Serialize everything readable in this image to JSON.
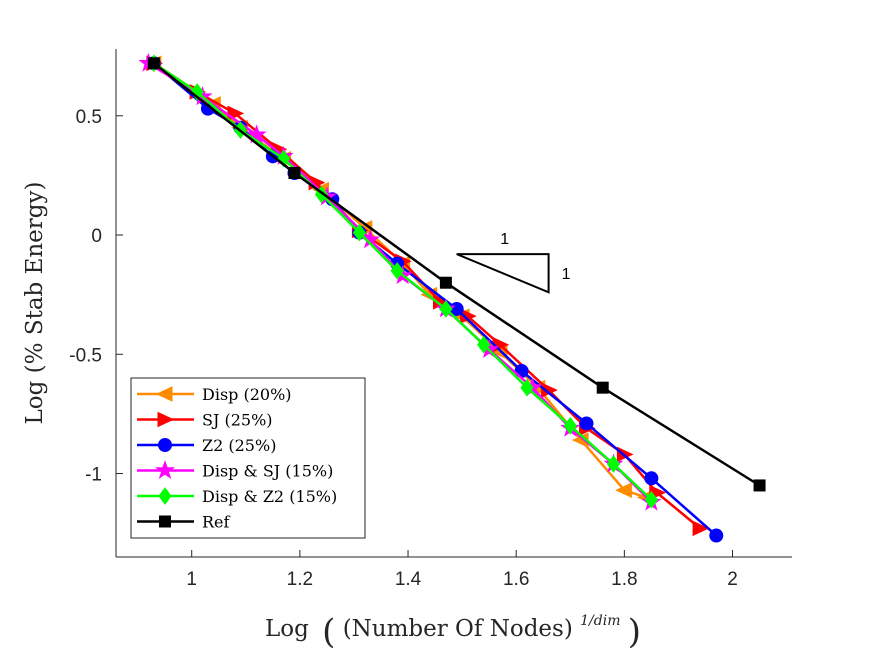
{
  "chart_data": {
    "type": "line",
    "title": "",
    "xlabel": "Log ((Number Of Nodes)^{1/dim})",
    "xlabel_parts": {
      "prefix": "Log",
      "main": "(Number Of Nodes)",
      "exponent": "1/dim"
    },
    "ylabel": "Log (% Stab Energy)",
    "xlim": [
      0.86,
      2.11
    ],
    "ylim": [
      -1.35,
      0.78
    ],
    "xticks": [
      1,
      1.2,
      1.4,
      1.6,
      1.8,
      2
    ],
    "xtick_labels": [
      "1",
      "1.2",
      "1.4",
      "1.6",
      "1.8",
      "2"
    ],
    "yticks": [
      0.5,
      0,
      -0.5,
      -1
    ],
    "ytick_labels": [
      "0.5",
      "0",
      "-0.5",
      "-1"
    ],
    "grid": false,
    "legend_position": "bottom-left",
    "series": [
      {
        "name": "Disp (20%)",
        "color": "#ff8c00",
        "marker": "triangle-left",
        "x": [
          0.93,
          1.04,
          1.09,
          1.17,
          1.24,
          1.32,
          1.39,
          1.44,
          1.5,
          1.57,
          1.64,
          1.72,
          1.8,
          1.84
        ],
        "y": [
          0.72,
          0.55,
          0.45,
          0.32,
          0.19,
          0.03,
          -0.12,
          -0.25,
          -0.34,
          -0.49,
          -0.64,
          -0.86,
          -1.07,
          -1.1
        ]
      },
      {
        "name": "SJ (25%)",
        "color": "#ff0000",
        "marker": "triangle-right",
        "x": [
          0.93,
          1.01,
          1.08,
          1.16,
          1.23,
          1.31,
          1.39,
          1.46,
          1.51,
          1.57,
          1.66,
          1.73,
          1.8,
          1.86,
          1.94
        ],
        "y": [
          0.72,
          0.6,
          0.51,
          0.36,
          0.22,
          0.02,
          -0.11,
          -0.28,
          -0.34,
          -0.46,
          -0.65,
          -0.81,
          -0.92,
          -1.08,
          -1.23
        ]
      },
      {
        "name": "Z2 (25%)",
        "color": "#0000ff",
        "marker": "circle",
        "x": [
          0.93,
          1.03,
          1.09,
          1.15,
          1.19,
          1.26,
          1.31,
          1.38,
          1.49,
          1.61,
          1.73,
          1.85,
          1.97
        ],
        "y": [
          0.72,
          0.53,
          0.45,
          0.33,
          0.26,
          0.15,
          0.01,
          -0.12,
          -0.31,
          -0.57,
          -0.79,
          -1.02,
          -1.26
        ]
      },
      {
        "name": "Disp & SJ (15%)",
        "color": "#ff00ff",
        "marker": "star",
        "x": [
          0.92,
          1.02,
          1.12,
          1.17,
          1.25,
          1.33,
          1.39,
          1.47,
          1.55,
          1.63,
          1.7,
          1.78,
          1.85
        ],
        "y": [
          0.72,
          0.58,
          0.42,
          0.33,
          0.16,
          -0.02,
          -0.17,
          -0.31,
          -0.48,
          -0.64,
          -0.81,
          -0.96,
          -1.12
        ]
      },
      {
        "name": "Disp & Z2 (15%)",
        "color": "#00ff00",
        "marker": "diamond",
        "x": [
          0.93,
          1.01,
          1.09,
          1.17,
          1.24,
          1.31,
          1.38,
          1.47,
          1.54,
          1.62,
          1.7,
          1.78,
          1.85
        ],
        "y": [
          0.72,
          0.6,
          0.44,
          0.32,
          0.17,
          0.01,
          -0.15,
          -0.31,
          -0.46,
          -0.64,
          -0.8,
          -0.96,
          -1.11
        ]
      },
      {
        "name": "Ref",
        "color": "#000000",
        "marker": "square",
        "x": [
          0.93,
          1.19,
          1.47,
          1.76,
          2.05
        ],
        "y": [
          0.72,
          0.26,
          -0.2,
          -0.64,
          -1.05
        ]
      }
    ],
    "slope_triangle": {
      "corners": [
        [
          1.49,
          -0.08
        ],
        [
          1.66,
          -0.08
        ],
        [
          1.66,
          -0.24
        ]
      ],
      "run_label": "1",
      "rise_label": "1"
    }
  }
}
